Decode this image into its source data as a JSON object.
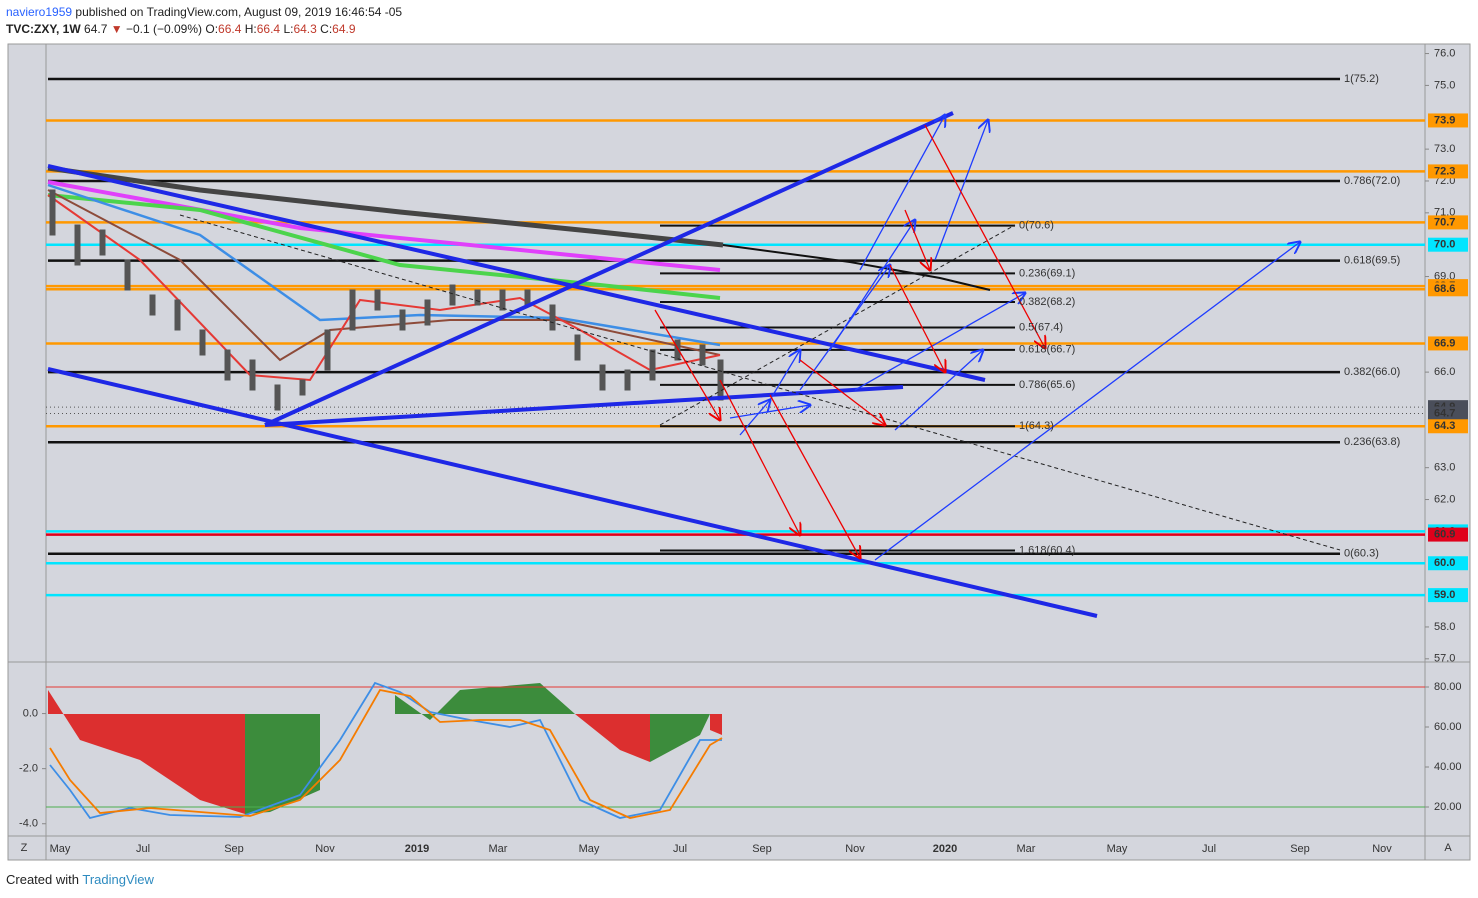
{
  "header": {
    "publisher": "naviero1959",
    "published": "published on TradingView.com, August 09, 2019 16:46:54 -05"
  },
  "symbol": {
    "name": "TVC:ZXY, 1W",
    "last": "64.7",
    "arrow": "▼",
    "change": "−0.1 (−0.09%)",
    "open_label": "O:",
    "open": "66.4",
    "high_label": "H:",
    "high": "66.4",
    "low_label": "L:",
    "low": "64.3",
    "close_label": "C:",
    "close": "64.9"
  },
  "price_axis": {
    "range": [
      56.9,
      76.3
    ],
    "ticks": [
      {
        "value": 76,
        "label": "76.0"
      },
      {
        "value": 75,
        "label": "75.0"
      },
      {
        "value": 73,
        "label": "73.0"
      },
      {
        "value": 72,
        "label": "72.0"
      },
      {
        "value": 71,
        "label": "71.0"
      },
      {
        "value": 69,
        "label": "69.0"
      },
      {
        "value": 66,
        "label": "66.0"
      },
      {
        "value": 63,
        "label": "63.0"
      },
      {
        "value": 62,
        "label": "62.0"
      },
      {
        "value": 58,
        "label": "58.0"
      },
      {
        "value": 57,
        "label": "57.0"
      }
    ]
  },
  "price_tags": [
    {
      "value": 73.9,
      "label": "73.9",
      "color": "#ff9800"
    },
    {
      "value": 72.3,
      "label": "72.3",
      "color": "#ff9800"
    },
    {
      "value": 70.7,
      "label": "70.7",
      "color": "#ff9800"
    },
    {
      "value": 70.0,
      "label": "70.0",
      "color": "#00e5ff"
    },
    {
      "value": 68.7,
      "label": "68.7",
      "color": "#ff9800"
    },
    {
      "value": 68.6,
      "label": "68.6",
      "color": "#ff9800"
    },
    {
      "value": 66.9,
      "label": "66.9",
      "color": "#ff9800"
    },
    {
      "value": 64.9,
      "label": "64.9",
      "color": "#4a4e5a"
    },
    {
      "value": 64.7,
      "label": "64.7",
      "color": "#4a4e5a"
    },
    {
      "value": 64.3,
      "label": "64.3",
      "color": "#ff9800"
    },
    {
      "value": 61.0,
      "label": "61.0",
      "color": "#00e5ff"
    },
    {
      "value": 60.9,
      "label": "60.9",
      "color": "#e0001b"
    },
    {
      "value": 60.0,
      "label": "60.0",
      "color": "#00e5ff"
    },
    {
      "value": 59.0,
      "label": "59.0",
      "color": "#00e5ff"
    }
  ],
  "fib_a": [
    {
      "value": 75.2,
      "label": "1(75.2)"
    },
    {
      "value": 72.0,
      "label": "0.786(72.0)"
    },
    {
      "value": 69.5,
      "label": "0.618(69.5)"
    },
    {
      "value": 66.0,
      "label": "0.382(66.0)"
    },
    {
      "value": 63.8,
      "label": "0.236(63.8)"
    },
    {
      "value": 60.3,
      "label": "0(60.3)"
    }
  ],
  "fib_b": [
    {
      "value": 70.6,
      "label": "0(70.6)"
    },
    {
      "value": 69.1,
      "label": "0.236(69.1)"
    },
    {
      "value": 68.2,
      "label": "0.382(68.2)"
    },
    {
      "value": 67.4,
      "label": "0.5(67.4)"
    },
    {
      "value": 66.7,
      "label": "0.618(66.7)"
    },
    {
      "value": 65.6,
      "label": "0.786(65.6)"
    },
    {
      "value": 64.3,
      "label": "1(64.3)"
    },
    {
      "value": 60.4,
      "label": "1.618(60.4)"
    }
  ],
  "time_axis": [
    "May",
    "Jul",
    "Sep",
    "Nov",
    "2019",
    "Mar",
    "May",
    "Jul",
    "Sep",
    "Nov",
    "2020",
    "Mar",
    "May",
    "Jul",
    "Sep",
    "Nov"
  ],
  "oscillator": {
    "left_range": [
      -4.3,
      1.8
    ],
    "left_ticks": [
      {
        "value": 0,
        "label": "0.0"
      },
      {
        "value": -2,
        "label": "-2.0"
      },
      {
        "value": -4,
        "label": "-4.0"
      }
    ],
    "right_range": [
      7.5,
      91.5
    ],
    "right_ticks": [
      {
        "value": 80,
        "label": "80.00"
      },
      {
        "value": 60,
        "label": "60.00"
      },
      {
        "value": 40,
        "label": "40.00"
      },
      {
        "value": 20,
        "label": "20.00"
      }
    ]
  },
  "corner": {
    "left": "Z",
    "right": "A"
  },
  "footer": {
    "created": "Created with",
    "brand": "TradingView"
  }
}
